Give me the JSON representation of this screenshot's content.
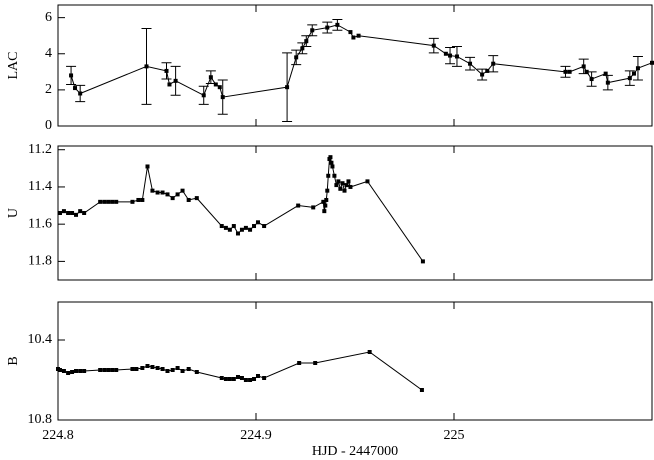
{
  "chart_data": [
    {
      "type": "line",
      "ylabel": "LAC",
      "color": "#000000",
      "x": [
        224.8066,
        224.8086,
        224.8112,
        224.8447,
        224.8548,
        224.8563,
        224.8594,
        224.8736,
        224.8772,
        224.8797,
        224.8817,
        224.8832,
        224.9157,
        224.9203,
        224.9234,
        224.9254,
        224.9284,
        224.936,
        224.9411,
        224.9477,
        224.9492,
        224.9518,
        224.9898,
        224.9959,
        224.998,
        225.0015,
        225.0081,
        225.0142,
        225.0168,
        225.0198,
        225.0563,
        225.0584,
        225.0655,
        225.067,
        225.0695,
        225.0766,
        225.0777,
        225.0888,
        225.0909,
        225.0929,
        225.1
      ],
      "values": [
        2.8,
        2.1,
        1.8,
        3.3,
        3.05,
        2.3,
        2.5,
        1.7,
        2.7,
        2.3,
        2.15,
        1.6,
        2.15,
        3.8,
        4.3,
        4.7,
        5.3,
        5.45,
        5.6,
        5.2,
        4.9,
        5.0,
        4.45,
        4.0,
        3.9,
        3.85,
        3.45,
        2.85,
        3.05,
        3.45,
        3.0,
        3.0,
        3.3,
        3.0,
        2.6,
        2.9,
        2.4,
        2.65,
        2.9,
        3.2,
        3.5
      ],
      "errors": [
        0.5,
        null,
        0.45,
        2.1,
        0.45,
        null,
        0.8,
        0.5,
        0.35,
        null,
        null,
        0.95,
        1.9,
        0.4,
        0.3,
        0.3,
        0.3,
        0.3,
        0.3,
        null,
        null,
        null,
        0.4,
        null,
        0.45,
        0.55,
        0.35,
        0.3,
        null,
        0.45,
        0.3,
        null,
        0.4,
        null,
        0.4,
        null,
        0.4,
        0.4,
        null,
        0.65,
        null
      ],
      "xlim": [
        224.8,
        225.1
      ],
      "xticks": [
        224.8,
        224.9,
        225
      ],
      "ylim": [
        0,
        6.7
      ],
      "yticks": [
        0,
        2,
        4,
        6
      ]
    },
    {
      "type": "line",
      "ylabel": "U",
      "color": "#000000",
      "x": [
        224.801,
        224.803,
        224.8051,
        224.8071,
        224.8091,
        224.8112,
        224.8132,
        224.8213,
        224.8234,
        224.8254,
        224.8274,
        224.8294,
        224.8376,
        224.8406,
        224.8426,
        224.8452,
        224.8477,
        224.8503,
        224.8528,
        224.8553,
        224.8579,
        224.8604,
        224.8629,
        224.866,
        224.8701,
        224.8827,
        224.8848,
        224.8868,
        224.8888,
        224.8909,
        224.8929,
        224.8949,
        224.897,
        224.899,
        224.901,
        224.9041,
        224.9213,
        224.9289,
        224.934,
        224.9345,
        224.935,
        224.9355,
        224.936,
        224.9365,
        224.9371,
        224.9376,
        224.9381,
        224.9386,
        224.9396,
        224.9406,
        224.9416,
        224.9426,
        224.9437,
        224.9447,
        224.9457,
        224.9467,
        224.9477,
        224.9563,
        224.9843
      ],
      "values": [
        11.54,
        11.53,
        11.54,
        11.54,
        11.55,
        11.53,
        11.54,
        11.48,
        11.48,
        11.48,
        11.48,
        11.48,
        11.48,
        11.47,
        11.47,
        11.29,
        11.42,
        11.43,
        11.43,
        11.44,
        11.46,
        11.44,
        11.42,
        11.47,
        11.46,
        11.61,
        11.62,
        11.63,
        11.61,
        11.65,
        11.63,
        11.62,
        11.63,
        11.61,
        11.59,
        11.61,
        11.5,
        11.51,
        11.48,
        11.53,
        11.5,
        11.47,
        11.42,
        11.34,
        11.25,
        11.24,
        11.27,
        11.29,
        11.34,
        11.39,
        11.37,
        11.41,
        11.38,
        11.42,
        11.39,
        11.37,
        11.4,
        11.37,
        11.8
      ],
      "xlim": [
        224.8,
        225.1
      ],
      "xticks": [
        224.8,
        224.9,
        225
      ],
      "ylim": [
        11.9,
        11.18
      ],
      "yticks": [
        11.2,
        11.4,
        11.6,
        11.8
      ]
    },
    {
      "type": "line",
      "ylabel": "B",
      "xlabel": "HJD - 2447000",
      "color": "#000000",
      "x": [
        224.8,
        224.801,
        224.803,
        224.8051,
        224.8071,
        224.8091,
        224.8112,
        224.8132,
        224.8213,
        224.8234,
        224.8254,
        224.8274,
        224.8294,
        224.8376,
        224.8396,
        224.8426,
        224.8452,
        224.8477,
        224.8503,
        224.8528,
        224.8553,
        224.8579,
        224.8604,
        224.8629,
        224.866,
        224.8701,
        224.8827,
        224.8848,
        224.8868,
        224.8888,
        224.8909,
        224.8929,
        224.8949,
        224.897,
        224.899,
        224.901,
        224.9041,
        224.9218,
        224.9299,
        224.9574,
        224.9838
      ],
      "values": [
        10.545,
        10.55,
        10.555,
        10.565,
        10.56,
        10.555,
        10.555,
        10.555,
        10.55,
        10.55,
        10.55,
        10.55,
        10.55,
        10.545,
        10.545,
        10.54,
        10.53,
        10.535,
        10.54,
        10.545,
        10.555,
        10.55,
        10.54,
        10.555,
        10.545,
        10.56,
        10.59,
        10.595,
        10.595,
        10.595,
        10.585,
        10.59,
        10.6,
        10.6,
        10.595,
        10.58,
        10.59,
        10.515,
        10.515,
        10.46,
        10.65
      ],
      "xlim": [
        224.8,
        225.1
      ],
      "xticks": [
        224.8,
        224.9,
        225
      ],
      "ylim": [
        10.8,
        10.21
      ],
      "yticks": [
        10.4,
        10.8
      ]
    }
  ]
}
